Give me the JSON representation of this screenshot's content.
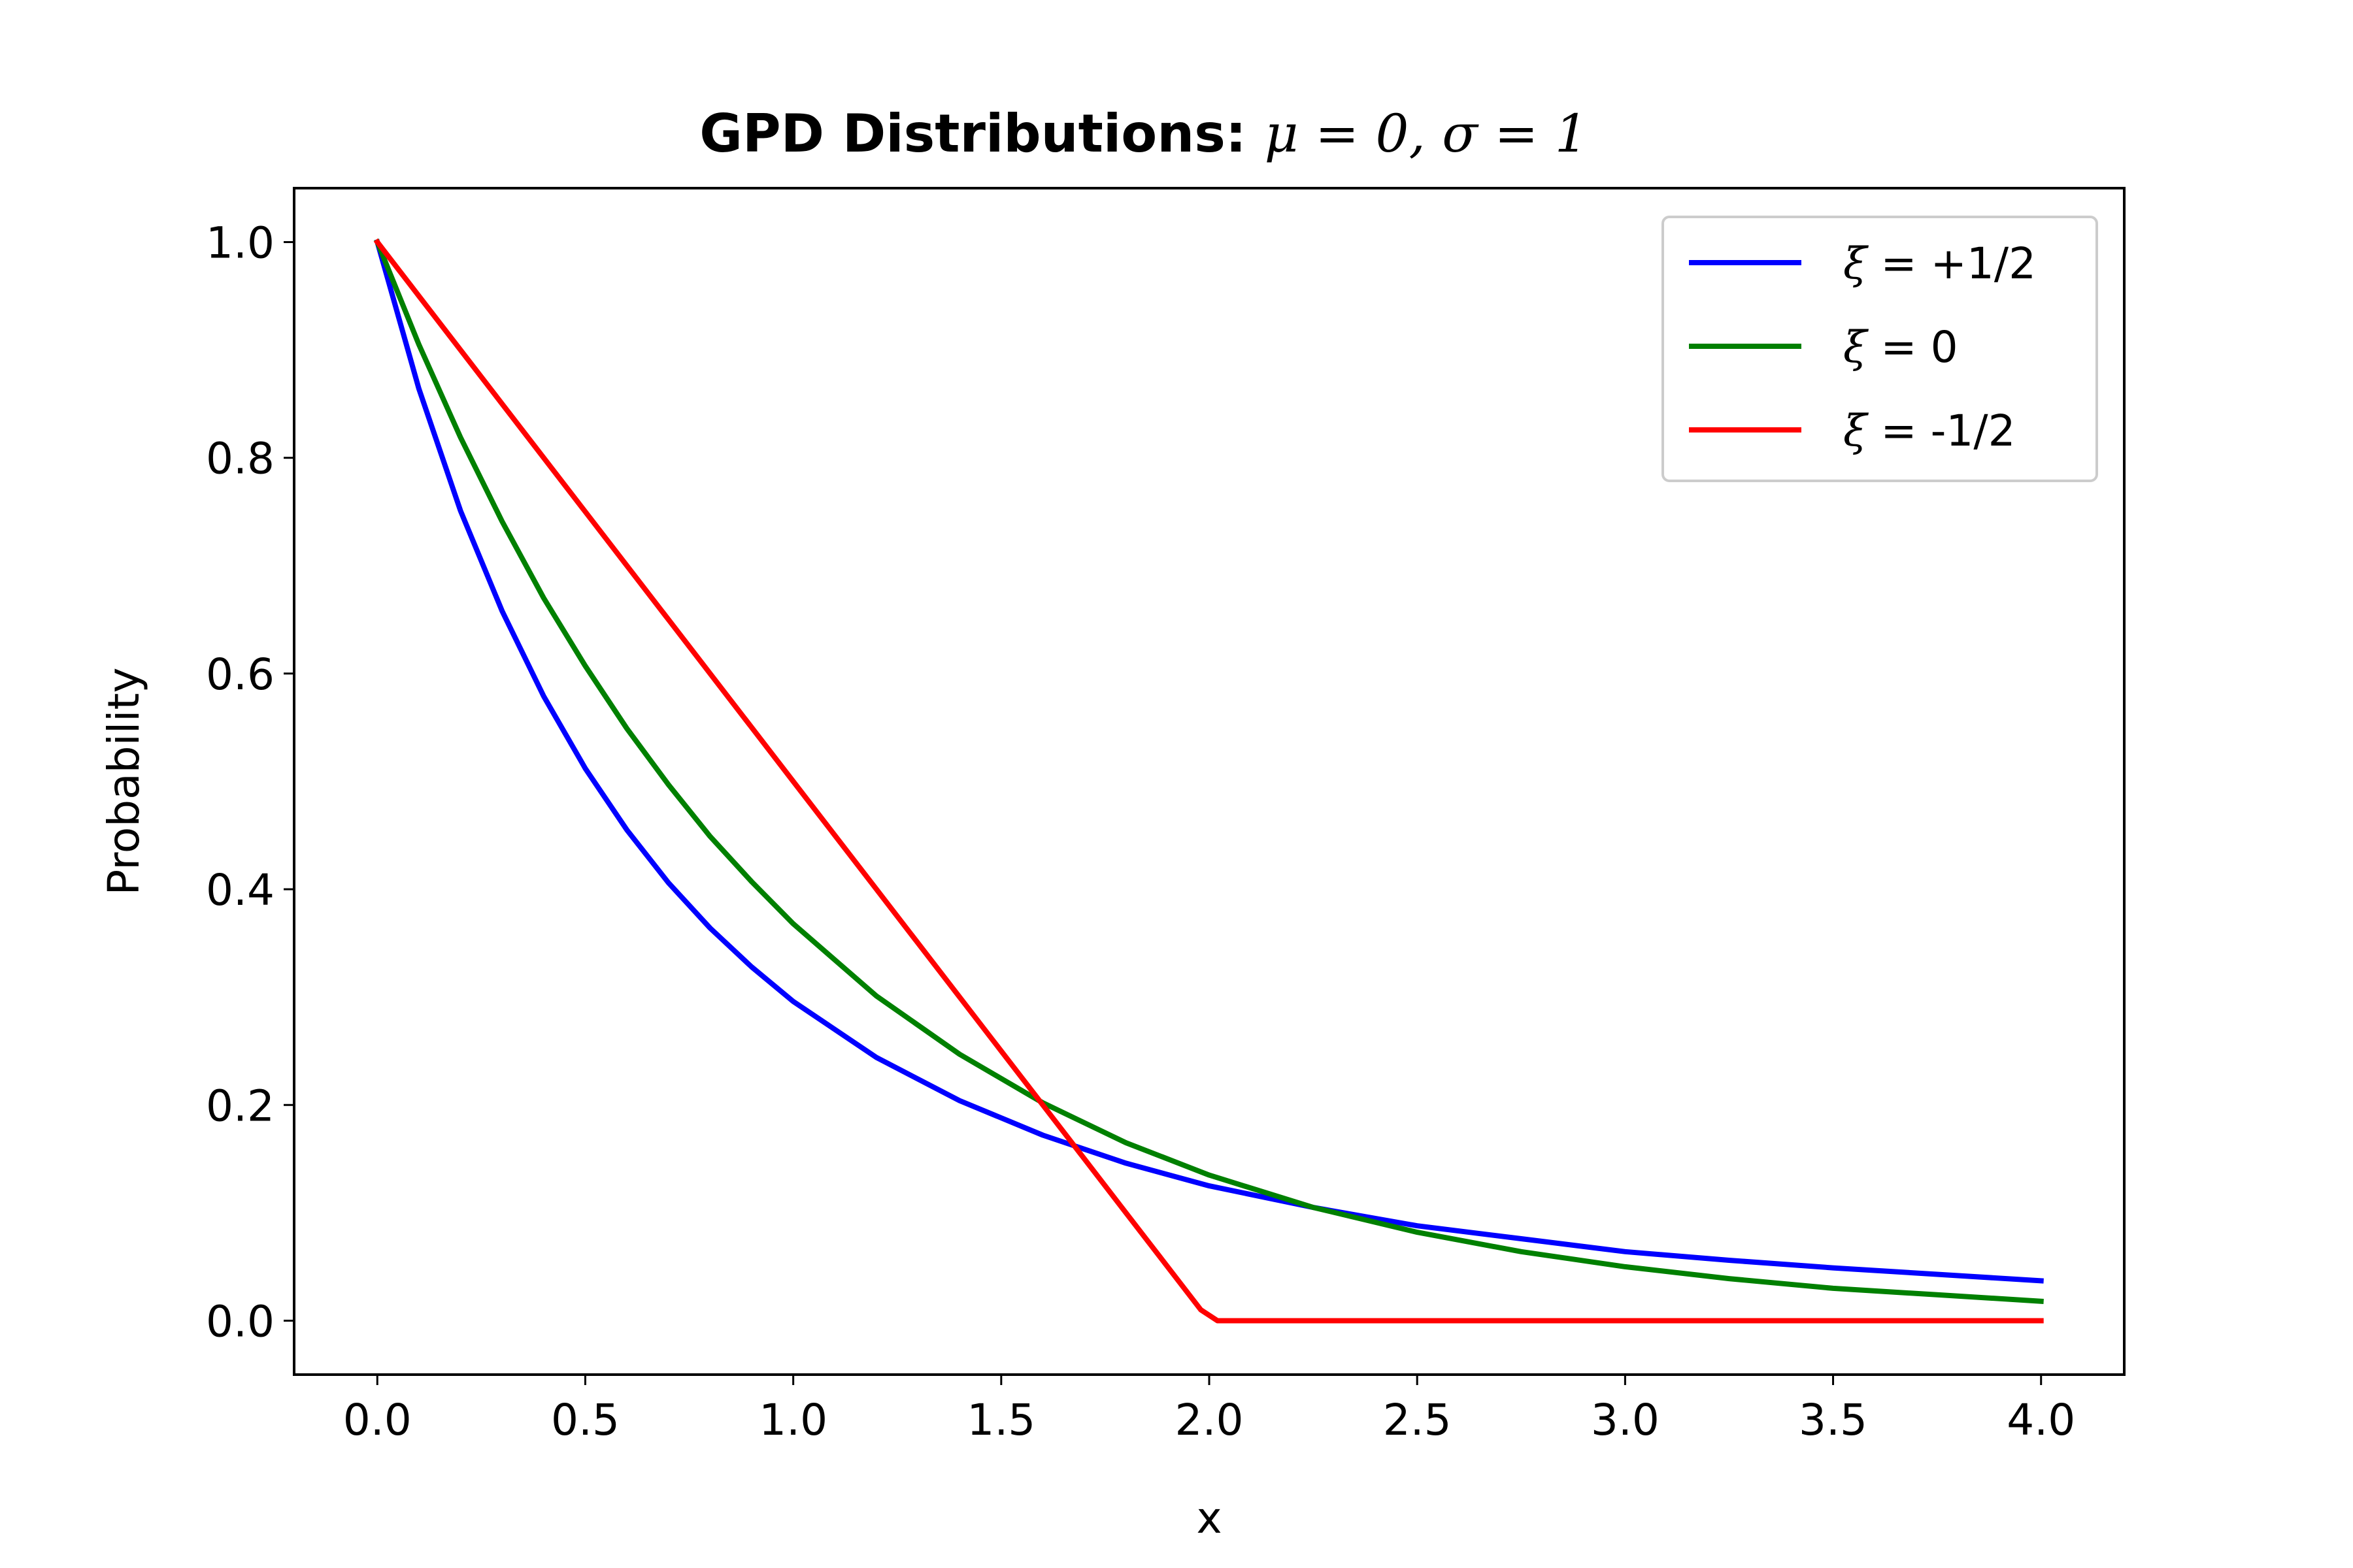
{
  "chart_data": {
    "type": "line",
    "title": {
      "bold": "GPD Distributions: ",
      "math": "μ = 0, σ = 1"
    },
    "xlabel": "x",
    "ylabel": "Probability",
    "xlim": [
      -0.2,
      4.2
    ],
    "ylim": [
      -0.05,
      1.05
    ],
    "xticks": [
      0.0,
      0.5,
      1.0,
      1.5,
      2.0,
      2.5,
      3.0,
      3.5,
      4.0
    ],
    "xtick_labels": [
      "0.0",
      "0.5",
      "1.0",
      "1.5",
      "2.0",
      "2.5",
      "3.0",
      "3.5",
      "4.0"
    ],
    "yticks": [
      0.0,
      0.2,
      0.4,
      0.6,
      0.8,
      1.0
    ],
    "ytick_labels": [
      "0.0",
      "0.2",
      "0.4",
      "0.6",
      "0.8",
      "1.0"
    ],
    "grid": false,
    "legend_position": "top-right",
    "series": [
      {
        "name": "+1/2",
        "legend_symbol": "ξ",
        "color": "#0000ff",
        "x": [
          0.0,
          0.1,
          0.2,
          0.3,
          0.4,
          0.5,
          0.6,
          0.7,
          0.8,
          0.9,
          1.0,
          1.2,
          1.4,
          1.6,
          1.8,
          2.0,
          2.25,
          2.5,
          2.75,
          3.0,
          3.25,
          3.5,
          3.75,
          4.0
        ],
        "y": [
          1.0,
          0.864,
          0.751,
          0.658,
          0.579,
          0.512,
          0.455,
          0.406,
          0.364,
          0.328,
          0.296,
          0.244,
          0.204,
          0.172,
          0.146,
          0.125,
          0.105,
          0.088,
          0.076,
          0.064,
          0.056,
          0.049,
          0.043,
          0.037
        ]
      },
      {
        "name": "0",
        "legend_symbol": "ξ",
        "color": "#008000",
        "x": [
          0.0,
          0.1,
          0.2,
          0.3,
          0.4,
          0.5,
          0.6,
          0.7,
          0.8,
          0.9,
          1.0,
          1.2,
          1.4,
          1.6,
          1.8,
          2.0,
          2.25,
          2.5,
          2.75,
          3.0,
          3.25,
          3.5,
          3.75,
          4.0
        ],
        "y": [
          1.0,
          0.905,
          0.819,
          0.741,
          0.67,
          0.607,
          0.549,
          0.497,
          0.449,
          0.407,
          0.368,
          0.301,
          0.247,
          0.202,
          0.165,
          0.135,
          0.105,
          0.082,
          0.064,
          0.05,
          0.039,
          0.03,
          0.024,
          0.018
        ]
      },
      {
        "name": "-1/2",
        "legend_symbol": "ξ",
        "color": "#ff0000",
        "x": [
          0.0,
          0.2,
          0.4,
          0.6,
          0.8,
          1.0,
          1.2,
          1.4,
          1.6,
          1.8,
          1.98,
          2.02,
          2.5,
          3.0,
          3.5,
          4.0
        ],
        "y": [
          1.0,
          0.9,
          0.8,
          0.7,
          0.6,
          0.5,
          0.4,
          0.3,
          0.2,
          0.1,
          0.01,
          0.0,
          0.0,
          0.0,
          0.0,
          0.0
        ]
      }
    ]
  }
}
